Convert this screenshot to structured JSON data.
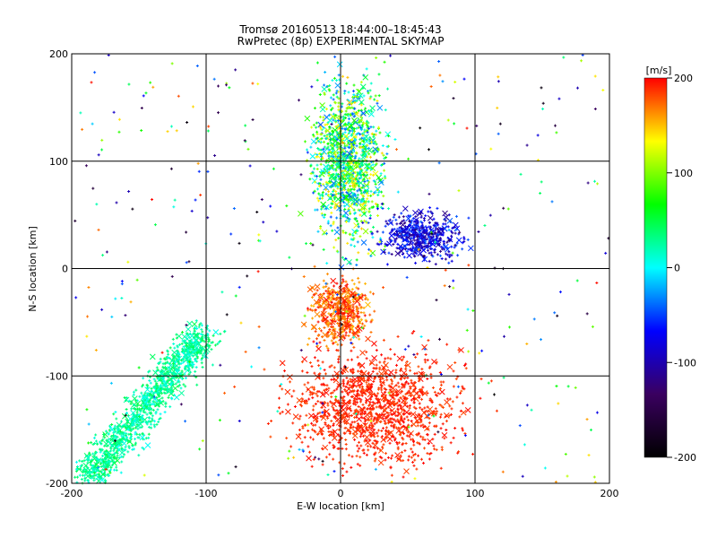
{
  "chart_data": {
    "type": "scatter",
    "title": "Tromsø 20160513 18:44:00–18:45:43",
    "subtitle": "RwPretec (8p) EXPERIMENTAL SKYMAP",
    "xlabel": "E-W location [km]",
    "ylabel": "N-S location [km]",
    "xlim": [
      -200,
      200
    ],
    "ylim": [
      -200,
      200
    ],
    "xticks": [
      "-200",
      "-100",
      "0",
      "100",
      "200"
    ],
    "yticks": [
      "-200",
      "-100",
      "0",
      "100",
      "200"
    ],
    "grid": true,
    "markers": [
      "+",
      "x"
    ],
    "colorbar": {
      "label": "[m/s]",
      "range": [
        -200,
        200
      ],
      "ticks": [
        "200",
        "100",
        "0",
        "-100",
        "-200"
      ],
      "colors": [
        "#000000",
        "#3a0060",
        "#0000ff",
        "#00ffff",
        "#00ff00",
        "#ffff00",
        "#ff0000"
      ]
    },
    "clusters": [
      {
        "region": "north-center",
        "x": [
          -30,
          40
        ],
        "y": [
          0,
          200
        ],
        "velocity": [
          -50,
          150
        ]
      },
      {
        "region": "south-center",
        "x": [
          -30,
          30
        ],
        "y": [
          -80,
          0
        ],
        "velocity": [
          150,
          200
        ]
      },
      {
        "region": "south-spread",
        "x": [
          -60,
          110
        ],
        "y": [
          -200,
          -60
        ],
        "velocity": [
          180,
          200
        ]
      },
      {
        "region": "southwest-tail",
        "x": [
          -190,
          -100
        ],
        "y": [
          -200,
          -60
        ],
        "velocity": [
          0,
          50
        ]
      },
      {
        "region": "east-blue",
        "x": [
          20,
          100
        ],
        "y": [
          0,
          60
        ],
        "velocity": [
          -120,
          -40
        ]
      }
    ]
  }
}
